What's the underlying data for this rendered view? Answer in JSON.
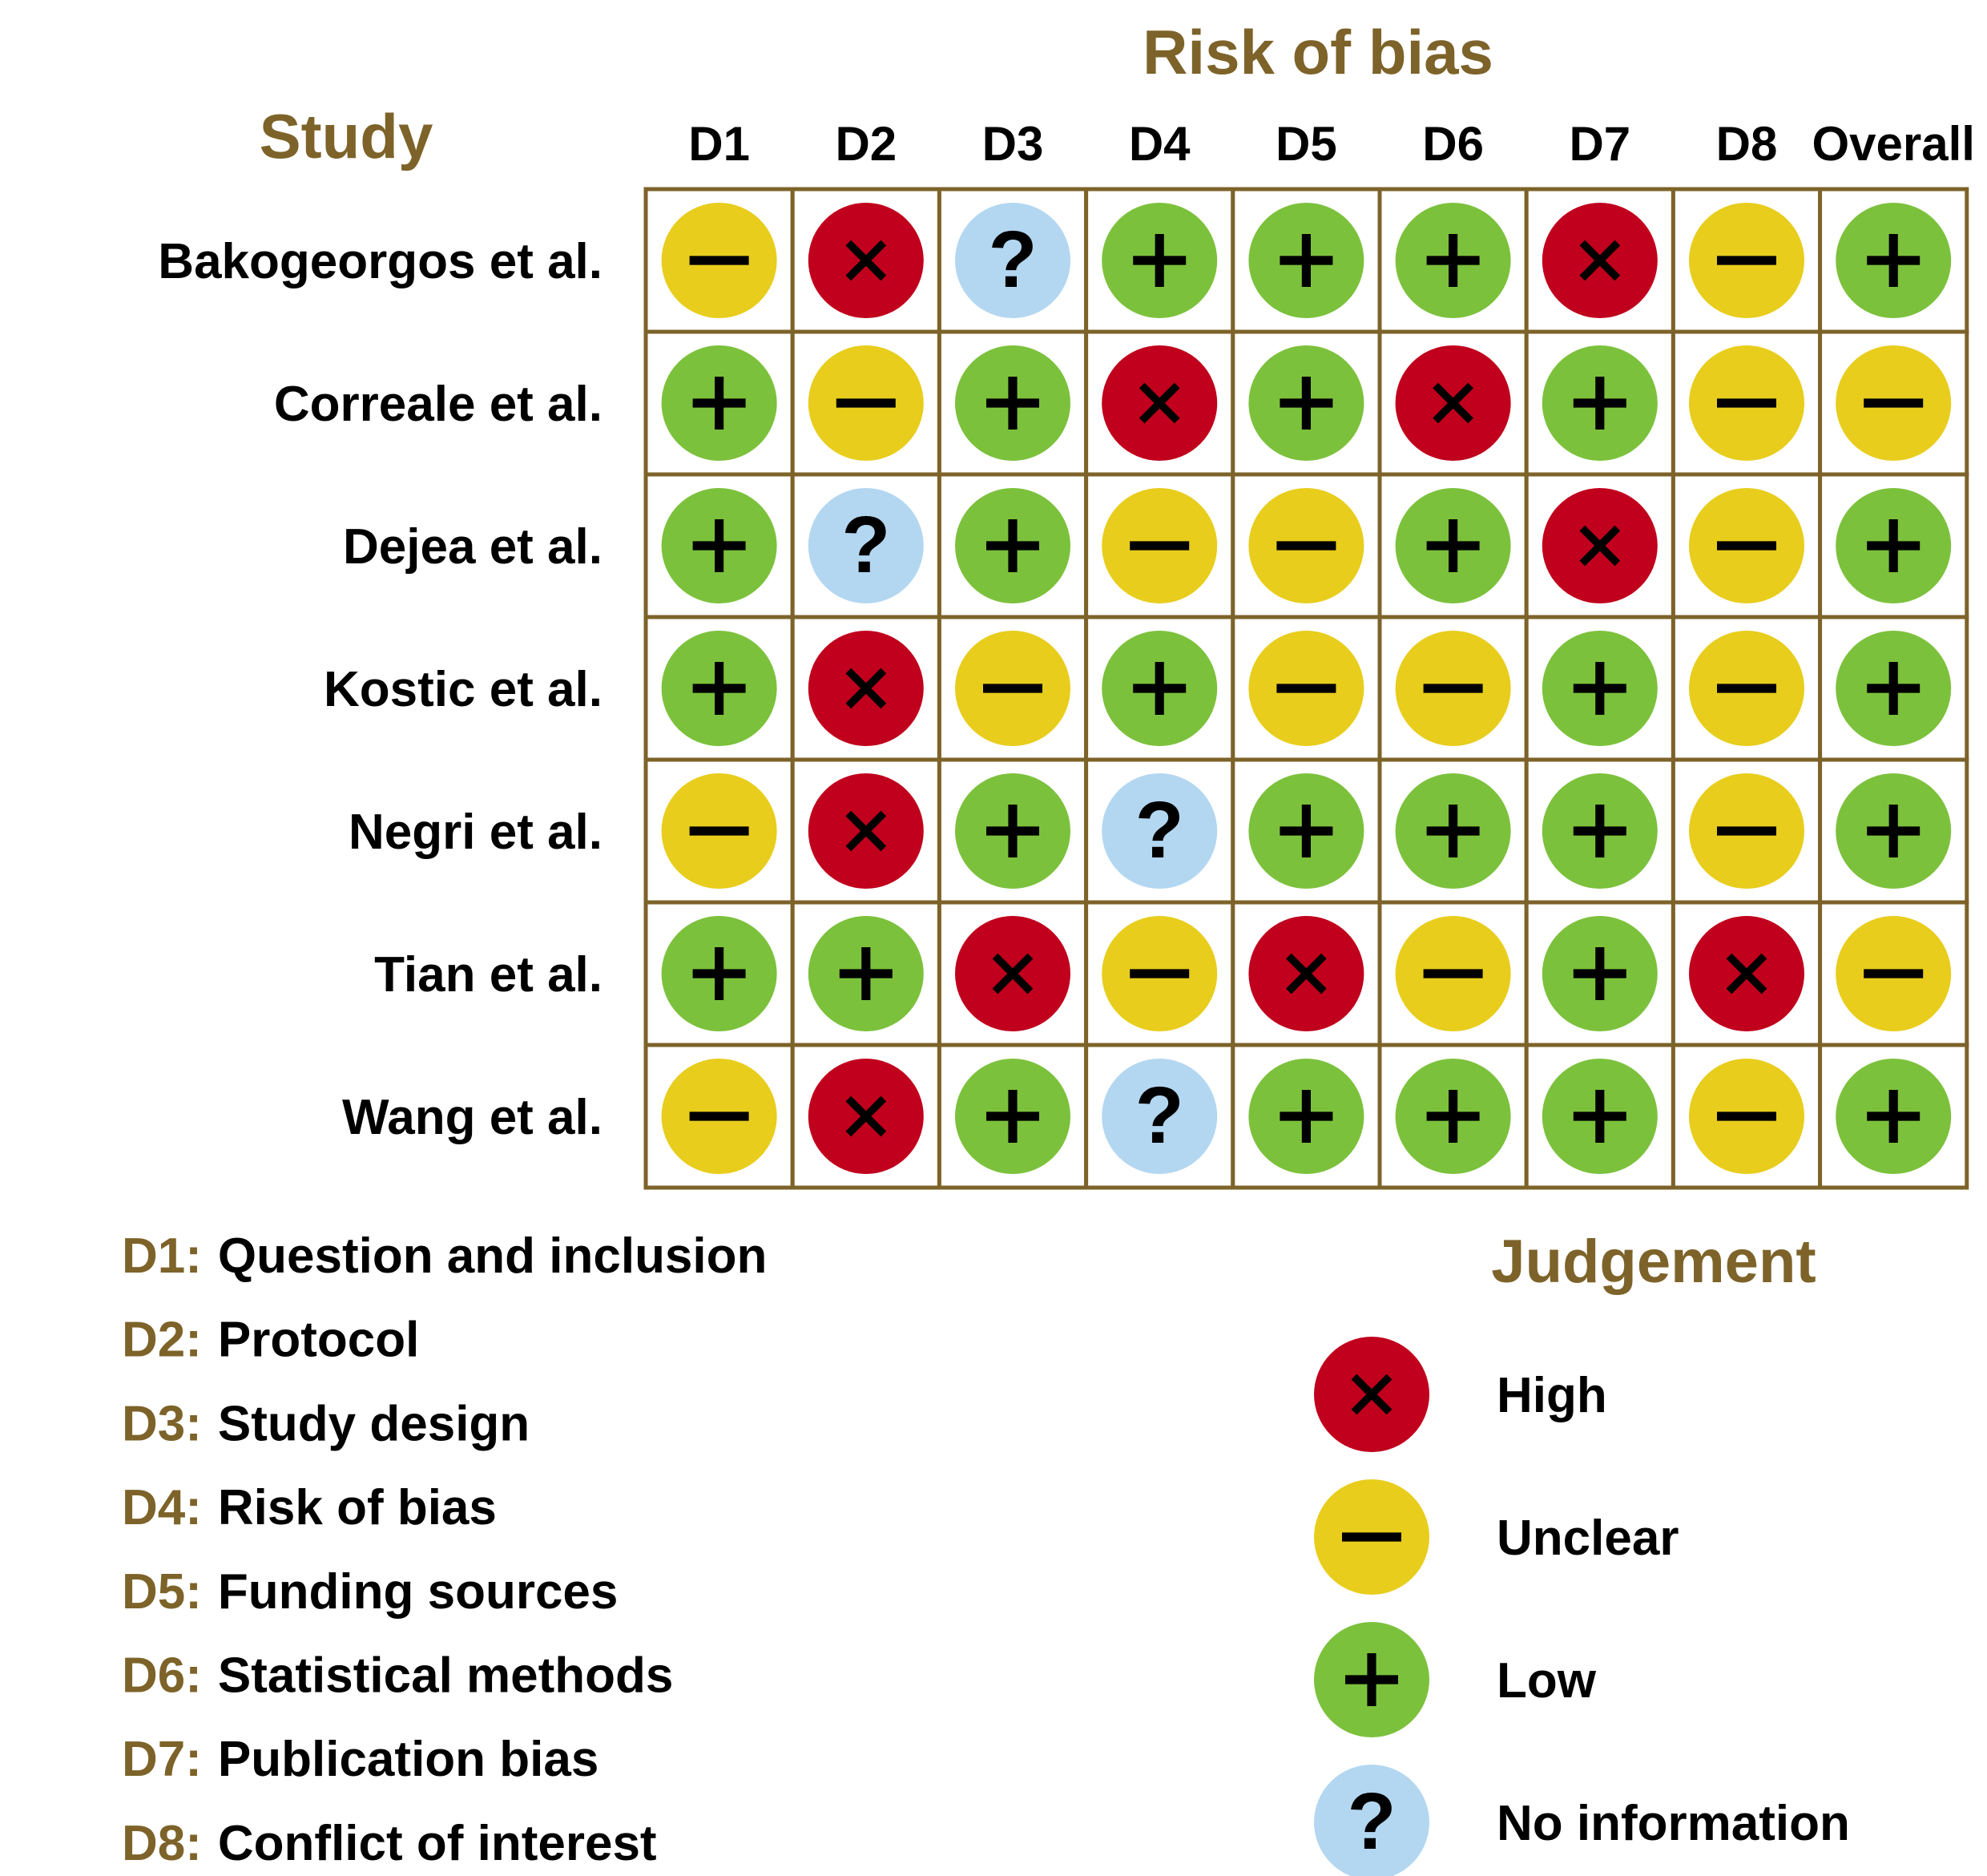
{
  "chart_data": {
    "type": "table",
    "title": "Risk of bias",
    "study_header": "Study",
    "columns": [
      "D1",
      "D2",
      "D3",
      "D4",
      "D5",
      "D6",
      "D7",
      "D8",
      "Overall"
    ],
    "rows": [
      {
        "study": "Bakogeorgos et al.",
        "judgements": [
          "unclear",
          "high",
          "noinfo",
          "low",
          "low",
          "low",
          "high",
          "unclear",
          "low"
        ]
      },
      {
        "study": "Correale et al.",
        "judgements": [
          "low",
          "unclear",
          "low",
          "high",
          "low",
          "high",
          "low",
          "unclear",
          "unclear"
        ]
      },
      {
        "study": "Dejea et al.",
        "judgements": [
          "low",
          "noinfo",
          "low",
          "unclear",
          "unclear",
          "low",
          "high",
          "unclear",
          "low"
        ]
      },
      {
        "study": "Kostic et al.",
        "judgements": [
          "low",
          "high",
          "unclear",
          "low",
          "unclear",
          "unclear",
          "low",
          "unclear",
          "low"
        ]
      },
      {
        "study": "Negri et al.",
        "judgements": [
          "unclear",
          "high",
          "low",
          "noinfo",
          "low",
          "low",
          "low",
          "unclear",
          "low"
        ]
      },
      {
        "study": "Tian et al.",
        "judgements": [
          "low",
          "low",
          "high",
          "unclear",
          "high",
          "unclear",
          "low",
          "high",
          "unclear"
        ]
      },
      {
        "study": "Wang et al.",
        "judgements": [
          "unclear",
          "high",
          "low",
          "noinfo",
          "low",
          "low",
          "low",
          "unclear",
          "low"
        ]
      }
    ],
    "domains": [
      {
        "code": "D1:",
        "label": "Question and inclusion"
      },
      {
        "code": "D2:",
        "label": "Protocol"
      },
      {
        "code": "D3:",
        "label": "Study design"
      },
      {
        "code": "D4:",
        "label": "Risk of bias"
      },
      {
        "code": "D5:",
        "label": "Funding sources"
      },
      {
        "code": "D6:",
        "label": "Statistical methods"
      },
      {
        "code": "D7:",
        "label": "Publication bias"
      },
      {
        "code": "D8:",
        "label": "Conflict of interest"
      }
    ],
    "legend": {
      "title": "Judgement",
      "items": [
        {
          "key": "high",
          "label": "High"
        },
        {
          "key": "unclear",
          "label": "Unclear"
        },
        {
          "key": "low",
          "label": "Low"
        },
        {
          "key": "noinfo",
          "label": "No information"
        }
      ]
    },
    "symbols": {
      "high": "×",
      "unclear": "—",
      "low": "+",
      "noinfo": "?"
    }
  },
  "colors": {
    "high": "#c0001c",
    "unclear": "#e8cd1c",
    "low": "#7cc13c",
    "noinfo": "#b3d7f1",
    "accent": "#7d6329",
    "grid": "#7d6329",
    "text": "#000000"
  }
}
